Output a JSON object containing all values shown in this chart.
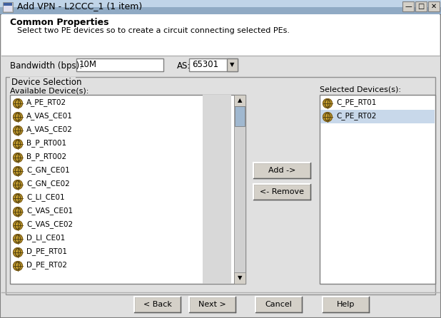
{
  "title_bar": "Add VPN - L2CCC_1 (1 item)",
  "title_bar_bg_top": "#b8cce0",
  "title_bar_bg_bot": "#8aaac8",
  "dialog_bg": "#e0e0e0",
  "section_title": "Common Properties",
  "section_desc": "Select two PE devices so to create a circuit connecting selected PEs.",
  "bandwidth_label": "Bandwidth (bps):",
  "bandwidth_value": "10M",
  "as_label": "AS:",
  "as_value": "65301",
  "group_label": "Device Selection",
  "avail_label": "Available Device(s):",
  "sel_label": "Selected Devices(s):",
  "available_devices": [
    "A_PE_RT02",
    "A_VAS_CE01",
    "A_VAS_CE02",
    "B_P_RT001",
    "B_P_RT002",
    "C_GN_CE01",
    "C_GN_CE02",
    "C_LI_CE01",
    "C_VAS_CE01",
    "C_VAS_CE02",
    "D_LI_CE01",
    "D_PE_RT01",
    "D_PE_RT02"
  ],
  "selected_devices": [
    "C_PE_RT01",
    "C_PE_RT02"
  ],
  "selected_highlight": 1,
  "btn_add": "Add ->",
  "btn_remove": "<- Remove",
  "btn_back": "< Back",
  "btn_next": "Next >",
  "btn_cancel": "Cancel",
  "btn_help": "Help",
  "white": "#ffffff",
  "light_gray": "#d4d0c8",
  "mid_gray": "#c8c8c8",
  "dark_gray": "#808080",
  "black": "#000000",
  "highlight_blue": "#c8d8ea",
  "scrollbar_color": "#a0b8d0",
  "scrollbar_bg": "#d0d0d0",
  "border_color": "#999999",
  "list_border": "#808080",
  "icon_fill": "#c8a030",
  "icon_edge": "#806018",
  "icon_cross": "#504010"
}
